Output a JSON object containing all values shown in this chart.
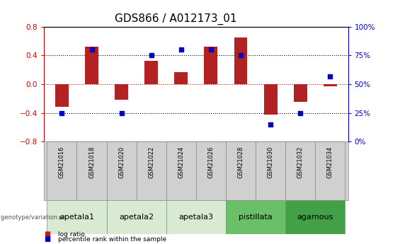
{
  "title": "GDS866 / A012173_01",
  "samples": [
    "GSM21016",
    "GSM21018",
    "GSM21020",
    "GSM21022",
    "GSM21024",
    "GSM21026",
    "GSM21028",
    "GSM21030",
    "GSM21032",
    "GSM21034"
  ],
  "log_ratio": [
    -0.32,
    0.52,
    -0.22,
    0.33,
    0.17,
    0.52,
    0.65,
    -0.42,
    -0.25,
    -0.03
  ],
  "percentile_rank": [
    25,
    80,
    25,
    75,
    80,
    80,
    75,
    15,
    25,
    57
  ],
  "ylim_left": [
    -0.8,
    0.8
  ],
  "ylim_right": [
    0,
    100
  ],
  "yticks_left": [
    -0.8,
    -0.4,
    0,
    0.4,
    0.8
  ],
  "yticks_right": [
    0,
    25,
    50,
    75,
    100
  ],
  "bar_color": "#b22222",
  "scatter_color": "#0000cc",
  "groups": [
    {
      "label": "apetala1",
      "cols": [
        0,
        1
      ],
      "color": "#d9ead3"
    },
    {
      "label": "apetala2",
      "cols": [
        2,
        3
      ],
      "color": "#d9ead3"
    },
    {
      "label": "apetala3",
      "cols": [
        4,
        5
      ],
      "color": "#d9ead3"
    },
    {
      "label": "pistillata",
      "cols": [
        6,
        7
      ],
      "color": "#6abf69"
    },
    {
      "label": "agamous",
      "cols": [
        8,
        9
      ],
      "color": "#43a047"
    }
  ],
  "sample_row_color": "#d0d0d0",
  "legend_bar_color": "#b22222",
  "legend_scatter_color": "#0000cc",
  "legend_label_bar": "log ratio",
  "legend_label_scatter": "percentile rank within the sample",
  "left_tick_color": "#cc0000",
  "right_tick_color": "#0000cc",
  "title_fontsize": 11,
  "tick_fontsize": 7.5,
  "sample_fontsize": 6,
  "group_fontsize": 8
}
